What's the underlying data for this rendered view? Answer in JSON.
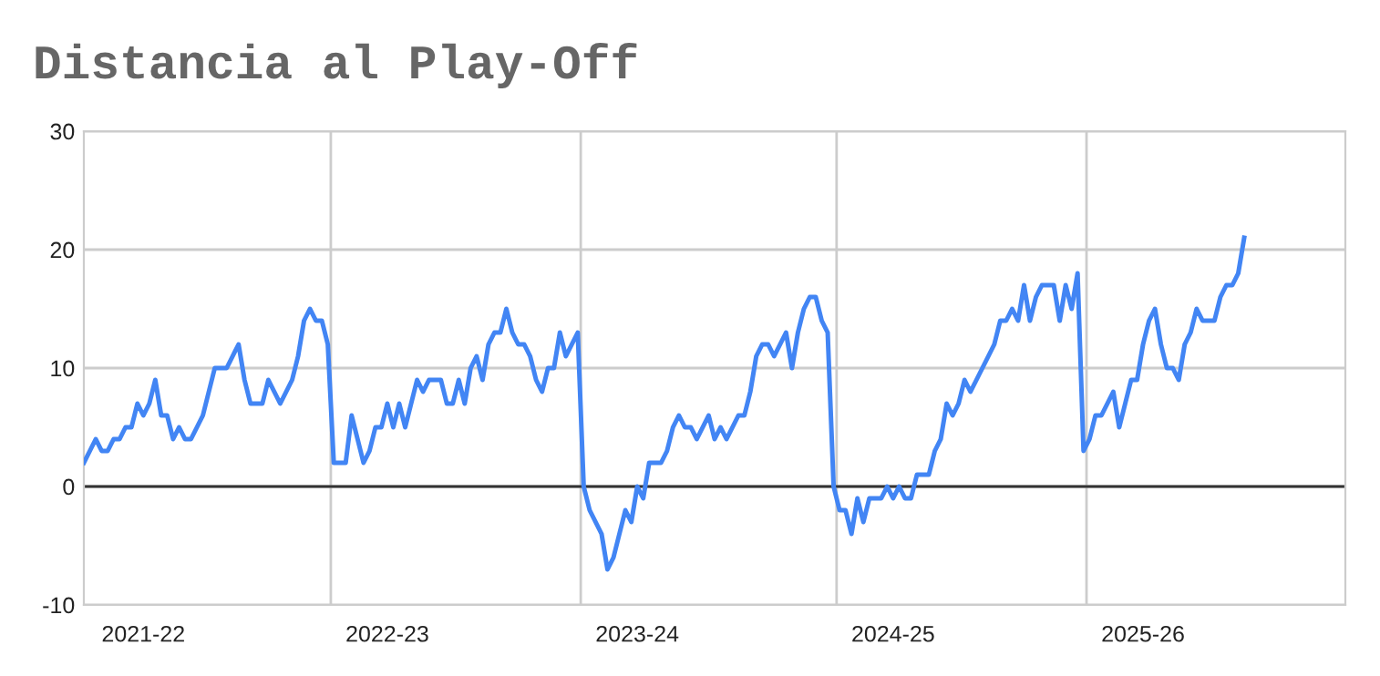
{
  "chart_data": {
    "type": "line",
    "title": "Distancia al Play-Off",
    "categories": [
      null,
      null,
      null,
      null,
      null,
      null,
      null,
      null,
      null,
      null,
      "2021-22",
      null,
      null,
      null,
      null,
      null,
      null,
      null,
      null,
      null,
      null,
      null,
      null,
      null,
      null,
      null,
      null,
      null,
      null,
      null,
      null,
      null,
      null,
      null,
      null,
      null,
      null,
      null,
      null,
      null,
      null,
      null,
      null,
      null,
      null,
      null,
      null,
      null,
      null,
      null,
      null,
      "2022-23",
      null,
      null,
      null,
      null,
      null,
      null,
      null,
      null,
      null,
      null,
      null,
      null,
      null,
      null,
      null,
      null,
      null,
      null,
      null,
      null,
      null,
      null,
      null,
      null,
      null,
      null,
      null,
      null,
      null,
      null,
      null,
      null,
      null,
      null,
      null,
      null,
      null,
      null,
      null,
      null,
      null,
      "2023-24",
      null,
      null,
      null,
      null,
      null,
      null,
      null,
      null,
      null,
      null,
      null,
      null,
      null,
      null,
      null,
      null,
      null,
      null,
      null,
      null,
      null,
      null,
      null,
      null,
      null,
      null,
      null,
      null,
      null,
      null,
      null,
      null,
      null,
      null,
      null,
      null,
      null,
      null,
      null,
      null,
      null,
      null,
      "2024-25",
      null,
      null,
      null,
      null,
      null,
      null,
      null,
      null,
      null,
      null,
      null,
      null,
      null,
      null,
      null,
      null,
      null,
      null,
      null,
      null,
      null,
      null,
      null,
      null,
      null,
      null,
      null,
      null,
      null,
      null,
      null,
      null,
      null,
      null,
      null,
      null,
      null,
      null,
      null,
      null,
      null,
      "2025-26",
      null,
      null,
      null,
      null,
      null,
      null,
      null,
      null,
      null,
      null,
      null,
      null,
      null,
      null,
      null,
      null,
      null,
      null,
      null,
      null,
      null,
      null,
      null,
      null,
      null,
      null,
      null,
      null,
      null,
      null,
      null,
      null,
      null,
      null
    ],
    "series": [
      {
        "color": "#4285f4",
        "values": [
          2,
          3,
          4,
          3,
          3,
          4,
          4,
          5,
          5,
          7,
          6,
          7,
          9,
          6,
          6,
          4,
          5,
          4,
          4,
          5,
          6,
          8,
          10,
          10,
          10,
          11,
          12,
          9,
          7,
          7,
          7,
          9,
          8,
          7,
          8,
          9,
          11,
          14,
          15,
          14,
          14,
          12,
          2,
          2,
          2,
          6,
          4,
          2,
          3,
          5,
          5,
          7,
          5,
          7,
          5,
          7,
          9,
          8,
          9,
          9,
          9,
          7,
          7,
          9,
          7,
          10,
          11,
          9,
          12,
          13,
          13,
          15,
          13,
          12,
          12,
          11,
          9,
          8,
          10,
          10,
          13,
          11,
          12,
          13,
          0,
          -2,
          -3,
          -4,
          -7,
          -6,
          -4,
          -2,
          -3,
          0,
          -1,
          2,
          2,
          2,
          3,
          5,
          6,
          5,
          5,
          4,
          5,
          6,
          4,
          5,
          4,
          5,
          6,
          6,
          8,
          11,
          12,
          12,
          11,
          12,
          13,
          10,
          13,
          15,
          16,
          16,
          14,
          13,
          0,
          -2,
          -2,
          -4,
          -1,
          -3,
          -1,
          -1,
          -1,
          0,
          -1,
          0,
          -1,
          -1,
          1,
          1,
          1,
          3,
          4,
          7,
          6,
          7,
          9,
          8,
          9,
          10,
          11,
          12,
          14,
          14,
          15,
          14,
          17,
          14,
          16,
          17,
          17,
          17,
          14,
          17,
          15,
          18,
          3,
          4,
          6,
          6,
          7,
          8,
          5,
          7,
          9,
          9,
          12,
          14,
          15,
          12,
          10,
          10,
          9,
          12,
          13,
          15,
          14,
          14,
          14,
          16,
          17,
          17,
          18,
          21,
          null,
          null,
          null,
          null,
          null,
          null,
          null,
          null,
          null,
          null,
          null,
          null,
          null,
          null,
          null,
          null,
          null
        ]
      }
    ],
    "ylim": [
      -10,
      30
    ],
    "yticks": [
      -10,
      0,
      10,
      20,
      30
    ],
    "grid": "y",
    "marker": "none",
    "line_style": "solid",
    "legend": false,
    "ref_lines": [
      {
        "axis": "y",
        "value": 0,
        "color": "#333333"
      }
    ]
  }
}
